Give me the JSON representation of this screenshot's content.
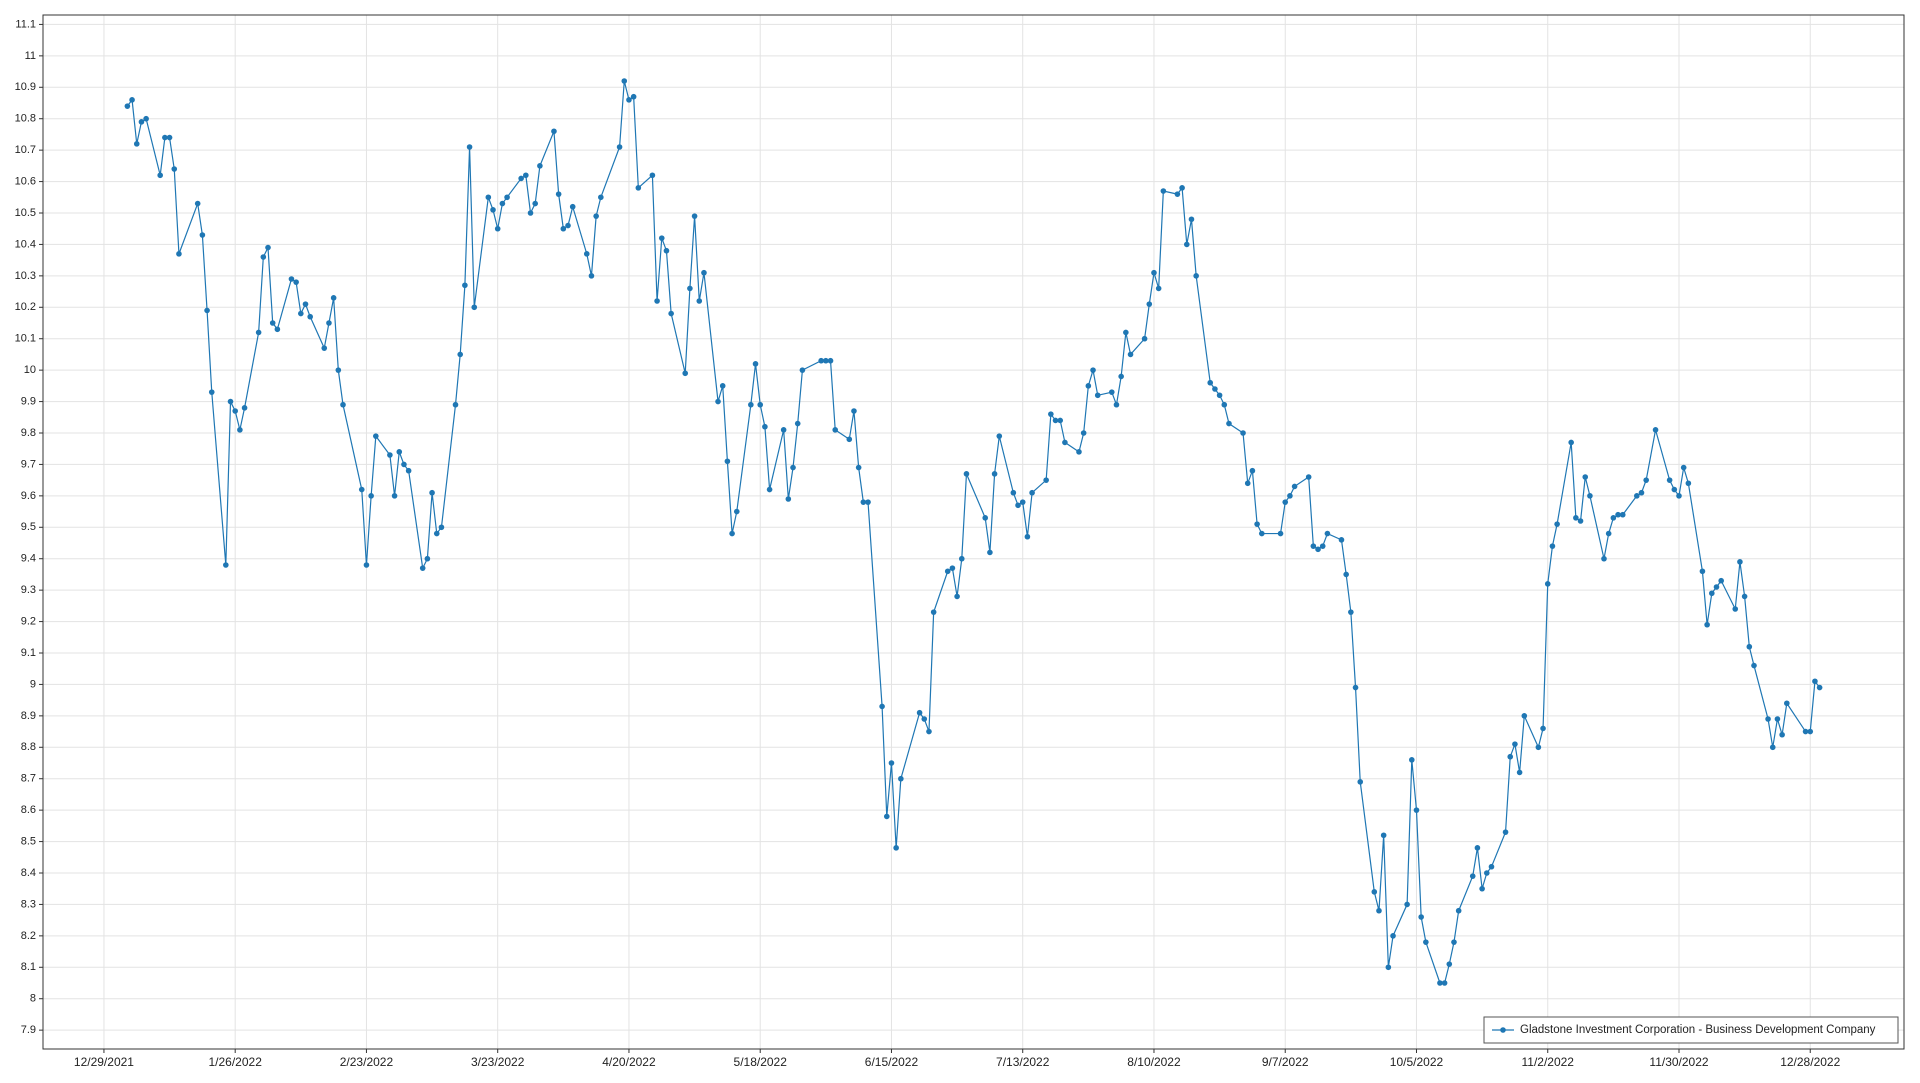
{
  "chart_data": {
    "type": "line",
    "x": [
      "1/3/2022",
      "1/4/2022",
      "1/5/2022",
      "1/6/2022",
      "1/7/2022",
      "1/10/2022",
      "1/11/2022",
      "1/12/2022",
      "1/13/2022",
      "1/14/2022",
      "1/18/2022",
      "1/19/2022",
      "1/20/2022",
      "1/21/2022",
      "1/24/2022",
      "1/25/2022",
      "1/26/2022",
      "1/27/2022",
      "1/28/2022",
      "1/31/2022",
      "2/1/2022",
      "2/2/2022",
      "2/3/2022",
      "2/4/2022",
      "2/7/2022",
      "2/8/2022",
      "2/9/2022",
      "2/10/2022",
      "2/11/2022",
      "2/14/2022",
      "2/15/2022",
      "2/16/2022",
      "2/17/2022",
      "2/18/2022",
      "2/22/2022",
      "2/23/2022",
      "2/24/2022",
      "2/25/2022",
      "2/28/2022",
      "3/1/2022",
      "3/2/2022",
      "3/3/2022",
      "3/4/2022",
      "3/7/2022",
      "3/8/2022",
      "3/9/2022",
      "3/10/2022",
      "3/11/2022",
      "3/14/2022",
      "3/15/2022",
      "3/16/2022",
      "3/17/2022",
      "3/18/2022",
      "3/21/2022",
      "3/22/2022",
      "3/23/2022",
      "3/24/2022",
      "3/25/2022",
      "3/28/2022",
      "3/29/2022",
      "3/30/2022",
      "3/31/2022",
      "4/1/2022",
      "4/4/2022",
      "4/5/2022",
      "4/6/2022",
      "4/7/2022",
      "4/8/2022",
      "4/11/2022",
      "4/12/2022",
      "4/13/2022",
      "4/14/2022",
      "4/18/2022",
      "4/19/2022",
      "4/20/2022",
      "4/21/2022",
      "4/22/2022",
      "4/25/2022",
      "4/26/2022",
      "4/27/2022",
      "4/28/2022",
      "4/29/2022",
      "5/2/2022",
      "5/3/2022",
      "5/4/2022",
      "5/5/2022",
      "5/6/2022",
      "5/9/2022",
      "5/10/2022",
      "5/11/2022",
      "5/12/2022",
      "5/13/2022",
      "5/16/2022",
      "5/17/2022",
      "5/18/2022",
      "5/19/2022",
      "5/20/2022",
      "5/23/2022",
      "5/24/2022",
      "5/25/2022",
      "5/26/2022",
      "5/27/2022",
      "5/31/2022",
      "6/1/2022",
      "6/2/2022",
      "6/3/2022",
      "6/6/2022",
      "6/7/2022",
      "6/8/2022",
      "6/9/2022",
      "6/10/2022",
      "6/13/2022",
      "6/14/2022",
      "6/15/2022",
      "6/16/2022",
      "6/17/2022",
      "6/21/2022",
      "6/22/2022",
      "6/23/2022",
      "6/24/2022",
      "6/27/2022",
      "6/28/2022",
      "6/29/2022",
      "6/30/2022",
      "7/1/2022",
      "7/5/2022",
      "7/6/2022",
      "7/7/2022",
      "7/8/2022",
      "7/11/2022",
      "7/12/2022",
      "7/13/2022",
      "7/14/2022",
      "7/15/2022",
      "7/18/2022",
      "7/19/2022",
      "7/20/2022",
      "7/21/2022",
      "7/22/2022",
      "7/25/2022",
      "7/26/2022",
      "7/27/2022",
      "7/28/2022",
      "7/29/2022",
      "8/1/2022",
      "8/2/2022",
      "8/3/2022",
      "8/4/2022",
      "8/5/2022",
      "8/8/2022",
      "8/9/2022",
      "8/10/2022",
      "8/11/2022",
      "8/12/2022",
      "8/15/2022",
      "8/16/2022",
      "8/17/2022",
      "8/18/2022",
      "8/19/2022",
      "8/22/2022",
      "8/23/2022",
      "8/24/2022",
      "8/25/2022",
      "8/26/2022",
      "8/29/2022",
      "8/30/2022",
      "8/31/2022",
      "9/1/2022",
      "9/2/2022",
      "9/6/2022",
      "9/7/2022",
      "9/8/2022",
      "9/9/2022",
      "9/12/2022",
      "9/13/2022",
      "9/14/2022",
      "9/15/2022",
      "9/16/2022",
      "9/19/2022",
      "9/20/2022",
      "9/21/2022",
      "9/22/2022",
      "9/23/2022",
      "9/26/2022",
      "9/27/2022",
      "9/28/2022",
      "9/29/2022",
      "9/30/2022",
      "10/3/2022",
      "10/4/2022",
      "10/5/2022",
      "10/6/2022",
      "10/7/2022",
      "10/10/2022",
      "10/11/2022",
      "10/12/2022",
      "10/13/2022",
      "10/14/2022",
      "10/17/2022",
      "10/18/2022",
      "10/19/2022",
      "10/20/2022",
      "10/21/2022",
      "10/24/2022",
      "10/25/2022",
      "10/26/2022",
      "10/27/2022",
      "10/28/2022",
      "10/31/2022",
      "11/1/2022",
      "11/2/2022",
      "11/3/2022",
      "11/4/2022",
      "11/7/2022",
      "11/8/2022",
      "11/9/2022",
      "11/10/2022",
      "11/11/2022",
      "11/14/2022",
      "11/15/2022",
      "11/16/2022",
      "11/17/2022",
      "11/18/2022",
      "11/21/2022",
      "11/22/2022",
      "11/23/2022",
      "11/25/2022",
      "11/28/2022",
      "11/29/2022",
      "11/30/2022",
      "12/1/2022",
      "12/2/2022",
      "12/5/2022",
      "12/6/2022",
      "12/7/2022",
      "12/8/2022",
      "12/9/2022",
      "12/12/2022",
      "12/13/2022",
      "12/14/2022",
      "12/15/2022",
      "12/16/2022",
      "12/19/2022",
      "12/20/2022",
      "12/21/2022",
      "12/22/2022",
      "12/23/2022",
      "12/27/2022",
      "12/28/2022",
      "12/29/2022",
      "12/30/2022"
    ],
    "series": [
      {
        "name": "Gladstone Investment Corporation - Business Development Company",
        "color": "#1f77b4",
        "values": [
          10.84,
          10.86,
          10.72,
          10.79,
          10.8,
          10.62,
          10.74,
          10.74,
          10.64,
          10.37,
          10.53,
          10.43,
          10.19,
          9.93,
          9.38,
          9.9,
          9.87,
          9.81,
          9.88,
          10.12,
          10.36,
          10.39,
          10.15,
          10.13,
          10.29,
          10.28,
          10.18,
          10.21,
          10.17,
          10.07,
          10.15,
          10.23,
          10.0,
          9.89,
          9.62,
          9.38,
          9.6,
          9.79,
          9.73,
          9.6,
          9.74,
          9.7,
          9.68,
          9.37,
          9.4,
          9.61,
          9.48,
          9.5,
          9.89,
          10.05,
          10.27,
          10.71,
          10.2,
          10.55,
          10.51,
          10.45,
          10.53,
          10.55,
          10.61,
          10.62,
          10.5,
          10.53,
          10.65,
          10.76,
          10.56,
          10.45,
          10.46,
          10.52,
          10.37,
          10.3,
          10.49,
          10.55,
          10.71,
          10.92,
          10.86,
          10.87,
          10.58,
          10.62,
          10.22,
          10.42,
          10.38,
          10.18,
          9.99,
          10.26,
          10.49,
          10.22,
          10.31,
          9.9,
          9.95,
          9.71,
          9.48,
          9.55,
          9.89,
          10.02,
          9.89,
          9.82,
          9.62,
          9.81,
          9.59,
          9.69,
          9.83,
          10.0,
          10.03,
          10.03,
          10.03,
          9.81,
          9.78,
          9.87,
          9.69,
          9.58,
          9.58,
          8.93,
          8.58,
          8.75,
          8.48,
          8.7,
          8.91,
          8.89,
          8.85,
          9.23,
          9.36,
          9.37,
          9.28,
          9.4,
          9.67,
          9.53,
          9.42,
          9.67,
          9.79,
          9.61,
          9.57,
          9.58,
          9.47,
          9.61,
          9.65,
          9.86,
          9.84,
          9.84,
          9.77,
          9.74,
          9.8,
          9.95,
          10.0,
          9.92,
          9.93,
          9.89,
          9.98,
          10.12,
          10.05,
          10.1,
          10.21,
          10.31,
          10.26,
          10.57,
          10.56,
          10.58,
          10.4,
          10.48,
          10.3,
          9.96,
          9.94,
          9.92,
          9.89,
          9.83,
          9.8,
          9.64,
          9.68,
          9.51,
          9.48,
          9.48,
          9.58,
          9.6,
          9.63,
          9.66,
          9.44,
          9.43,
          9.44,
          9.48,
          9.46,
          9.35,
          9.23,
          8.99,
          8.69,
          8.34,
          8.28,
          8.52,
          8.1,
          8.2,
          8.3,
          8.76,
          8.6,
          8.26,
          8.18,
          8.05,
          8.05,
          8.11,
          8.18,
          8.28,
          8.39,
          8.48,
          8.35,
          8.4,
          8.42,
          8.53,
          8.77,
          8.81,
          8.72,
          8.9,
          8.8,
          8.86,
          9.32,
          9.44,
          9.51,
          9.77,
          9.53,
          9.52,
          9.66,
          9.6,
          9.4,
          9.48,
          9.53,
          9.54,
          9.54,
          9.6,
          9.61,
          9.65,
          9.81,
          9.65,
          9.62,
          9.6,
          9.69,
          9.64,
          9.36,
          9.19,
          9.29,
          9.31,
          9.33,
          9.24,
          9.39,
          9.28,
          9.12,
          9.06,
          8.89,
          8.8,
          8.89,
          8.84,
          8.94,
          8.85,
          8.85,
          9.01,
          8.99
        ]
      }
    ],
    "xlim": [
      "12/16/2021",
      "1/17/2023"
    ],
    "xticks": [
      "12/29/2021",
      "1/26/2022",
      "2/23/2022",
      "3/23/2022",
      "4/20/2022",
      "5/18/2022",
      "6/15/2022",
      "7/13/2022",
      "8/10/2022",
      "9/7/2022",
      "10/5/2022",
      "11/2/2022",
      "11/30/2022",
      "12/28/2022"
    ],
    "ylim": [
      7.84,
      11.13
    ],
    "yticks": [
      7.9,
      8,
      8.1,
      8.2,
      8.3,
      8.4,
      8.5,
      8.6,
      8.7,
      8.8,
      8.9,
      9,
      9.1,
      9.2,
      9.3,
      9.4,
      9.5,
      9.6,
      9.7,
      9.8,
      9.9,
      10,
      10.1,
      10.2,
      10.3,
      10.4,
      10.5,
      10.6,
      10.7,
      10.8,
      10.9,
      11,
      11.1
    ],
    "grid": true,
    "markers": true,
    "legend": "lower right"
  }
}
